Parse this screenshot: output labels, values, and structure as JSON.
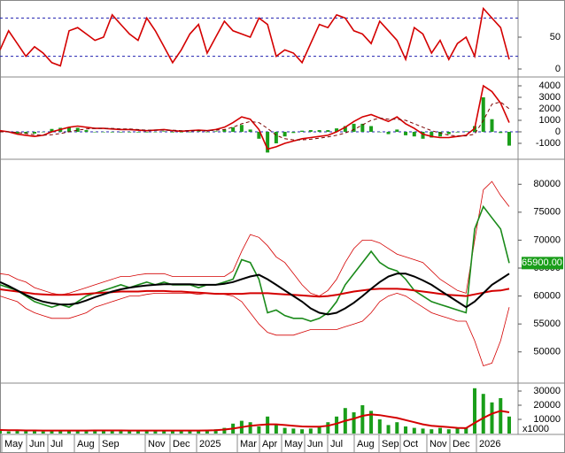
{
  "chart_data": [
    {
      "type": "line",
      "ylim": [
        0,
        100
      ],
      "yticks": [
        0,
        50
      ],
      "ref_lines": [
        20,
        80
      ],
      "series": [
        {
          "style": "line",
          "color": "#d40000",
          "values": [
            30,
            60,
            40,
            20,
            35,
            25,
            10,
            5,
            60,
            65,
            55,
            45,
            50,
            85,
            70,
            55,
            45,
            80,
            60,
            35,
            10,
            30,
            55,
            70,
            25,
            50,
            75,
            60,
            55,
            50,
            80,
            70,
            20,
            30,
            25,
            10,
            40,
            70,
            65,
            85,
            80,
            60,
            55,
            40,
            75,
            60,
            45,
            15,
            65,
            55,
            25,
            45,
            15,
            40,
            50,
            20,
            95,
            80,
            65,
            15
          ]
        }
      ]
    },
    {
      "type": "line",
      "ylim": [
        -2000,
        4500
      ],
      "yticks": [
        -1000,
        0,
        1000,
        2000,
        3000,
        4000
      ],
      "series": [
        {
          "style": "bar",
          "color": "#1a9e1a",
          "values": [
            100,
            0,
            -150,
            -150,
            -150,
            0,
            250,
            350,
            400,
            350,
            150,
            0,
            0,
            -50,
            -50,
            -50,
            -50,
            -50,
            0,
            50,
            -50,
            -50,
            0,
            50,
            0,
            50,
            200,
            400,
            600,
            200,
            -600,
            -1800,
            -1000,
            -400,
            -100,
            100,
            150,
            150,
            150,
            300,
            500,
            700,
            700,
            500,
            0,
            -200,
            200,
            -300,
            -400,
            -600,
            -500,
            -400,
            -200,
            -50,
            50,
            500,
            3000,
            1100,
            -100,
            -1200
          ]
        },
        {
          "style": "line",
          "color": "#d40000",
          "values": [
            100,
            0,
            -200,
            -300,
            -400,
            -300,
            0,
            200,
            400,
            500,
            400,
            300,
            300,
            250,
            200,
            200,
            150,
            100,
            150,
            200,
            100,
            50,
            100,
            150,
            100,
            200,
            400,
            800,
            1300,
            1100,
            200,
            -1500,
            -1300,
            -1000,
            -800,
            -600,
            -500,
            -400,
            -300,
            0,
            400,
            900,
            1300,
            1500,
            1200,
            900,
            1300,
            700,
            300,
            -200,
            -400,
            -500,
            -500,
            -400,
            -300,
            300,
            4000,
            3500,
            2500,
            800
          ]
        },
        {
          "style": "dashed",
          "color": "#7a0000",
          "values": [
            0,
            0,
            -50,
            -150,
            -250,
            -300,
            -250,
            -150,
            0,
            150,
            250,
            300,
            300,
            300,
            250,
            250,
            200,
            150,
            150,
            150,
            150,
            100,
            100,
            100,
            100,
            150,
            200,
            400,
            700,
            900,
            800,
            300,
            -300,
            -600,
            -700,
            -700,
            -650,
            -550,
            -450,
            -300,
            -100,
            200,
            600,
            1000,
            1200,
            1100,
            1100,
            1000,
            700,
            400,
            100,
            -100,
            -300,
            -350,
            -350,
            -200,
            1000,
            2400,
            2600,
            2000
          ]
        }
      ]
    },
    {
      "type": "line",
      "ylim": [
        46000,
        84000
      ],
      "yticks": [
        50000,
        55000,
        60000,
        65000,
        70000,
        75000,
        80000
      ],
      "last_price": 65900,
      "last_price_label": "65900.00",
      "series": [
        {
          "style": "thin",
          "color": "#d40000",
          "values": [
            64000,
            63800,
            63000,
            62500,
            61500,
            61000,
            60500,
            60200,
            60500,
            61000,
            61500,
            62000,
            62500,
            63000,
            63500,
            63500,
            63800,
            64000,
            64000,
            64000,
            63500,
            63500,
            63500,
            63500,
            63500,
            63500,
            63500,
            64500,
            68000,
            71000,
            70500,
            69000,
            67000,
            66000,
            64000,
            62000,
            60500,
            60000,
            61000,
            63000,
            66000,
            68500,
            70000,
            70000,
            69500,
            68500,
            67500,
            67000,
            66500,
            66000,
            64500,
            63000,
            62000,
            61000,
            60500,
            70000,
            79000,
            80500,
            78000,
            76000
          ]
        },
        {
          "style": "thin",
          "color": "#d40000",
          "values": [
            60000,
            59500,
            59000,
            57800,
            57000,
            56500,
            56000,
            56000,
            56000,
            56500,
            57000,
            58000,
            58500,
            59000,
            59500,
            60000,
            60000,
            60300,
            60500,
            60500,
            60500,
            60500,
            60500,
            60300,
            60500,
            60500,
            60300,
            60000,
            59000,
            57000,
            55000,
            53500,
            53000,
            53000,
            53000,
            53500,
            54000,
            54000,
            54000,
            54000,
            54500,
            55000,
            55500,
            57000,
            59000,
            60000,
            60500,
            60000,
            59000,
            58000,
            57000,
            56500,
            56000,
            55500,
            55500,
            52000,
            47500,
            48000,
            52000,
            58000
          ]
        },
        {
          "style": "line",
          "color": "#1a8a1a",
          "values": [
            62000,
            61500,
            61000,
            60000,
            59000,
            58500,
            58000,
            58500,
            58000,
            59000,
            60000,
            60500,
            61000,
            61500,
            62000,
            61500,
            62000,
            62500,
            62000,
            62500,
            62000,
            62000,
            62000,
            61500,
            62000,
            62000,
            62500,
            63000,
            66500,
            66000,
            63000,
            57000,
            57500,
            56500,
            56000,
            56000,
            55500,
            56000,
            57000,
            59000,
            62000,
            64000,
            66000,
            68000,
            66000,
            65000,
            64500,
            63000,
            61000,
            60000,
            59000,
            58500,
            58000,
            57500,
            57000,
            72000,
            76000,
            74000,
            72000,
            65900
          ]
        },
        {
          "style": "thick",
          "color": "#d40000",
          "values": [
            61200,
            61000,
            60800,
            60600,
            60400,
            60300,
            60200,
            60200,
            60200,
            60300,
            60400,
            60500,
            60600,
            60700,
            60800,
            60800,
            60800,
            60900,
            60900,
            60900,
            60800,
            60800,
            60700,
            60600,
            60500,
            60400,
            60400,
            60400,
            60400,
            60500,
            60500,
            60500,
            60400,
            60300,
            60200,
            60100,
            60000,
            59900,
            60000,
            60200,
            60500,
            60800,
            61000,
            61200,
            61300,
            61300,
            61300,
            61200,
            61000,
            60800,
            60600,
            60400,
            60200,
            60100,
            60000,
            60300,
            60600,
            60900,
            61000,
            61300
          ]
        },
        {
          "style": "thick",
          "color": "#000000",
          "values": [
            62500,
            61800,
            61000,
            60200,
            59500,
            59000,
            58700,
            58500,
            58500,
            58700,
            59200,
            59800,
            60300,
            60800,
            61200,
            61500,
            61700,
            61900,
            62000,
            62100,
            62100,
            62100,
            62100,
            62000,
            62000,
            62000,
            62200,
            62500,
            63000,
            63500,
            63800,
            63000,
            62000,
            61000,
            60000,
            59000,
            57800,
            57000,
            56700,
            57000,
            57800,
            58800,
            60000,
            61300,
            62500,
            63500,
            64000,
            64000,
            63500,
            62800,
            62000,
            61000,
            60000,
            59000,
            58000,
            59000,
            60500,
            62000,
            63000,
            64000
          ]
        }
      ]
    },
    {
      "type": "line",
      "ylim": [
        0,
        35000
      ],
      "yticks": [
        10000,
        20000,
        30000
      ],
      "unit_label": "x1000",
      "series": [
        {
          "style": "bar",
          "color": "#1a9e1a",
          "values": [
            2000,
            1500,
            2500,
            1800,
            2200,
            1500,
            2000,
            2500,
            1800,
            2000,
            2200,
            2600,
            1800,
            2400,
            2000,
            1800,
            2200,
            2500,
            2000,
            1800,
            2000,
            2200,
            1800,
            2000,
            2500,
            3000,
            4000,
            7000,
            9000,
            8000,
            5000,
            12000,
            6000,
            4000,
            3500,
            3000,
            3500,
            5000,
            8000,
            12000,
            18000,
            15000,
            20000,
            16000,
            10000,
            6000,
            8000,
            5000,
            4000,
            3500,
            3000,
            4000,
            3000,
            3500,
            4000,
            32000,
            28000,
            22000,
            25000,
            12000
          ]
        },
        {
          "style": "thick",
          "color": "#d40000",
          "values": [
            2500,
            2400,
            2300,
            2200,
            2200,
            2100,
            2100,
            2100,
            2100,
            2100,
            2100,
            2200,
            2200,
            2200,
            2200,
            2100,
            2100,
            2100,
            2100,
            2100,
            2100,
            2100,
            2100,
            2100,
            2200,
            2400,
            2800,
            3500,
            4500,
            5500,
            6000,
            6500,
            6500,
            6000,
            5500,
            5000,
            4800,
            4800,
            5500,
            7000,
            9000,
            10500,
            12500,
            13500,
            13000,
            12000,
            11000,
            9500,
            8000,
            6500,
            5500,
            5000,
            4500,
            4000,
            3800,
            7500,
            11000,
            14000,
            16000,
            15000
          ]
        }
      ]
    }
  ],
  "x_axis": {
    "labels": [
      "May",
      "Jun",
      "Jul",
      "Aug",
      "Sep",
      "Nov",
      "Dec",
      "2025",
      "Mar",
      "Apr",
      "May",
      "Jun",
      "Jul",
      "Aug",
      "Sep",
      "Oct",
      "Nov",
      "Dec",
      "2026"
    ]
  }
}
